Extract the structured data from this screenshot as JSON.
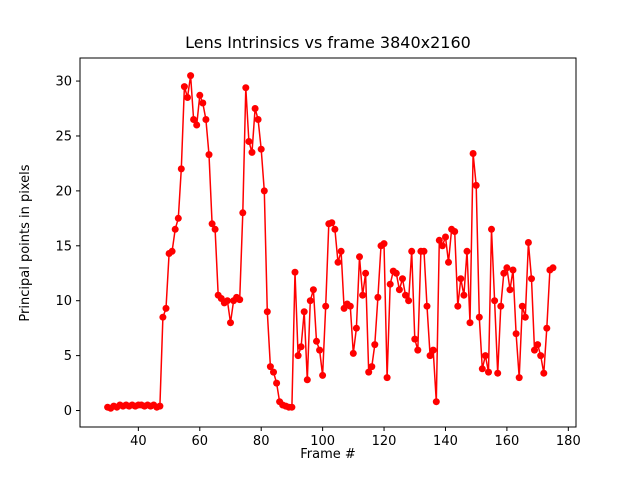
{
  "figure": {
    "background": "#ffffff"
  },
  "chart_data": {
    "type": "line",
    "title": "Lens Intrinsics vs frame 3840x2160",
    "xlabel": "Frame #",
    "ylabel": "Principal points in pixels",
    "legend": "none",
    "grid": false,
    "color": "#ff0000",
    "marker": "o",
    "marker_radius": 3.5,
    "line_width": 1.5,
    "xlim": [
      21,
      182.5
    ],
    "ylim": [
      -1.5,
      32.1
    ],
    "xticks": [
      40,
      60,
      80,
      100,
      120,
      140,
      160,
      180
    ],
    "yticks": [
      0,
      5,
      10,
      15,
      20,
      25,
      30
    ],
    "x": [
      30,
      31,
      32,
      33,
      34,
      35,
      36,
      37,
      38,
      39,
      40,
      41,
      42,
      43,
      44,
      45,
      46,
      47,
      48,
      49,
      50,
      51,
      52,
      53,
      54,
      55,
      56,
      57,
      58,
      59,
      60,
      61,
      62,
      63,
      64,
      65,
      66,
      67,
      68,
      69,
      70,
      71,
      72,
      73,
      74,
      75,
      76,
      77,
      78,
      79,
      80,
      81,
      82,
      83,
      84,
      85,
      86,
      87,
      88,
      89,
      90,
      91,
      92,
      93,
      94,
      95,
      96,
      97,
      98,
      99,
      100,
      101,
      102,
      103,
      104,
      105,
      106,
      107,
      108,
      109,
      110,
      111,
      112,
      113,
      114,
      115,
      116,
      117,
      118,
      119,
      120,
      121,
      122,
      123,
      124,
      125,
      126,
      127,
      128,
      129,
      130,
      131,
      132,
      133,
      134,
      135,
      136,
      137,
      138,
      139,
      140,
      141,
      142,
      143,
      144,
      145,
      146,
      147,
      148,
      149,
      150,
      151,
      152,
      153,
      154,
      155,
      156,
      157,
      158,
      159,
      160,
      161,
      162,
      163,
      164,
      165,
      166,
      167,
      168,
      169,
      170,
      171,
      172,
      173,
      174,
      175
    ],
    "values": [
      0.3,
      0.2,
      0.4,
      0.3,
      0.5,
      0.4,
      0.5,
      0.4,
      0.5,
      0.4,
      0.5,
      0.5,
      0.4,
      0.5,
      0.4,
      0.5,
      0.3,
      0.4,
      8.5,
      9.3,
      14.3,
      14.5,
      16.5,
      17.5,
      22.0,
      29.5,
      28.5,
      30.5,
      26.5,
      26.0,
      28.7,
      28.0,
      26.5,
      23.3,
      17.0,
      16.5,
      10.5,
      10.2,
      9.8,
      10.0,
      8.0,
      10.0,
      10.3,
      10.1,
      18.0,
      29.4,
      24.5,
      23.5,
      27.5,
      26.5,
      23.8,
      20.0,
      9.0,
      4.0,
      3.5,
      2.5,
      0.8,
      0.5,
      0.4,
      0.3,
      0.3,
      12.6,
      5.0,
      5.8,
      9.0,
      2.8,
      10.0,
      11.0,
      6.3,
      5.5,
      3.2,
      9.5,
      17.0,
      17.1,
      16.5,
      13.5,
      14.5,
      9.3,
      9.7,
      9.5,
      5.2,
      7.5,
      14.0,
      10.5,
      12.5,
      3.5,
      4.0,
      6.0,
      10.3,
      15.0,
      15.2,
      3.0,
      11.5,
      12.7,
      12.5,
      11.0,
      12.0,
      10.5,
      10.0,
      14.5,
      6.5,
      5.5,
      14.5,
      14.5,
      9.5,
      5.0,
      5.5,
      0.8,
      15.5,
      15.0,
      15.8,
      13.5,
      16.5,
      16.3,
      9.5,
      12.0,
      10.5,
      14.5,
      8.0,
      23.4,
      20.5,
      8.5,
      3.8,
      5.0,
      3.5,
      16.5,
      10.0,
      3.4,
      9.5,
      12.5,
      13.0,
      11.0,
      12.8,
      7.0,
      3.0,
      9.5,
      8.5,
      15.3,
      12.0,
      5.5,
      6.0,
      5.0,
      3.4,
      7.5,
      12.8,
      13.0
    ]
  }
}
